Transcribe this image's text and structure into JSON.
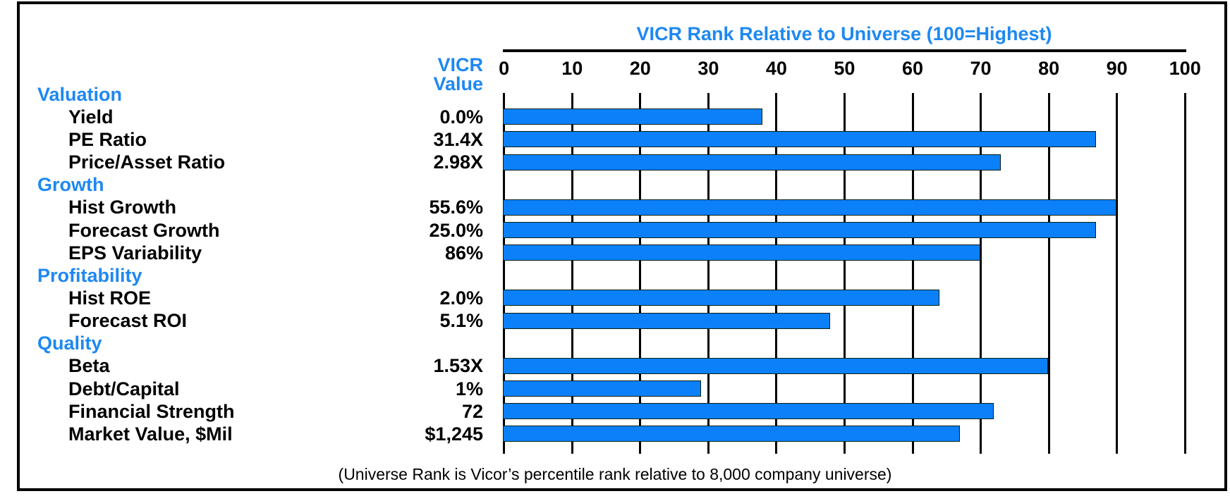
{
  "chart_data": {
    "type": "bar",
    "title": "VICR Rank Relative to Universe (100=Highest)",
    "value_col_header": [
      "VICR",
      "Value"
    ],
    "x_ticks": [
      0,
      10,
      20,
      30,
      40,
      50,
      60,
      70,
      80,
      90,
      100
    ],
    "xlim": [
      0,
      100
    ],
    "grid": true,
    "rows": [
      {
        "label": "Valuation",
        "header": true,
        "value": "",
        "rank": null
      },
      {
        "label": "Yield",
        "header": false,
        "value": "0.0%",
        "rank": 38
      },
      {
        "label": "PE Ratio",
        "header": false,
        "value": "31.4X",
        "rank": 87
      },
      {
        "label": "Price/Asset Ratio",
        "header": false,
        "value": "2.98X",
        "rank": 73
      },
      {
        "label": "Growth",
        "header": true,
        "value": "",
        "rank": null
      },
      {
        "label": "Hist Growth",
        "header": false,
        "value": "55.6%",
        "rank": 90
      },
      {
        "label": "Forecast Growth",
        "header": false,
        "value": "25.0%",
        "rank": 87
      },
      {
        "label": "EPS Variability",
        "header": false,
        "value": "86%",
        "rank": 70
      },
      {
        "label": "Profitability",
        "header": true,
        "value": "",
        "rank": null
      },
      {
        "label": "Hist ROE",
        "header": false,
        "value": "2.0%",
        "rank": 64
      },
      {
        "label": "Forecast ROI",
        "header": false,
        "value": "5.1%",
        "rank": 48
      },
      {
        "label": "Quality",
        "header": true,
        "value": "",
        "rank": null
      },
      {
        "label": "Beta",
        "header": false,
        "value": "1.53X",
        "rank": 80
      },
      {
        "label": "Debt/Capital",
        "header": false,
        "value": "1%",
        "rank": 29
      },
      {
        "label": "Financial Strength",
        "header": false,
        "value": "72",
        "rank": 72
      },
      {
        "label": "Market Value, $Mil",
        "header": false,
        "value": "$1,245",
        "rank": 67
      }
    ],
    "footnote": "(Universe Rank is Vicor’s percentile rank relative to 8,000 company universe)",
    "colors": {
      "accent_blue_text": "#1e88f2",
      "bar_fill": "#0b80f8",
      "bar_border": "#0d1f12",
      "grid_line": "#000000",
      "axis_text": "#000000",
      "background": "#ffffff"
    }
  }
}
